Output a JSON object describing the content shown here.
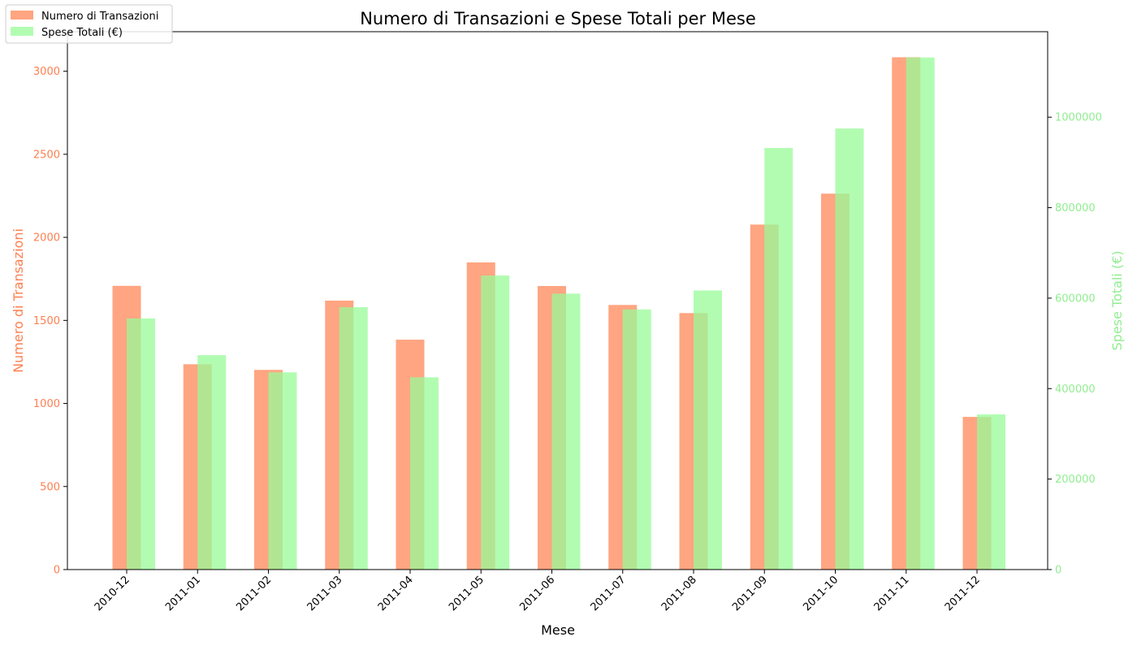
{
  "chart_data": {
    "type": "bar",
    "title": "Numero di Transazioni e Spese Totali per Mese",
    "xlabel": "Mese",
    "categories": [
      "2010-12",
      "2011-01",
      "2011-02",
      "2011-03",
      "2011-04",
      "2011-05",
      "2011-06",
      "2011-07",
      "2011-08",
      "2011-09",
      "2011-10",
      "2011-11",
      "2011-12"
    ],
    "series": [
      {
        "name": "Numero di Transazioni",
        "axis": "left",
        "color": "#ffa07a",
        "values": [
          1708,
          1236,
          1202,
          1619,
          1384,
          1849,
          1707,
          1593,
          1544,
          2077,
          2263,
          3084,
          919
        ]
      },
      {
        "name": "Spese Totali (€)",
        "axis": "right",
        "color": "#98fb98",
        "values": [
          555000,
          474000,
          436000,
          580000,
          425000,
          650000,
          610000,
          575000,
          617000,
          932000,
          975000,
          1132000,
          343000
        ]
      }
    ],
    "left_axis": {
      "label": "Numero di Transazioni",
      "color": "#ff7f50",
      "ylim": [
        0,
        3238
      ],
      "ticks": [
        "0",
        "500",
        "1000",
        "1500",
        "2000",
        "2500",
        "3000"
      ]
    },
    "right_axis": {
      "label": "Spese Totali (€)",
      "color": "#90ee90",
      "ylim": [
        0,
        1189000
      ],
      "ticks": [
        "0",
        "200000",
        "400000",
        "600000",
        "800000",
        "1000000"
      ]
    },
    "legend": {
      "placement": "top-left"
    },
    "grid": false
  }
}
